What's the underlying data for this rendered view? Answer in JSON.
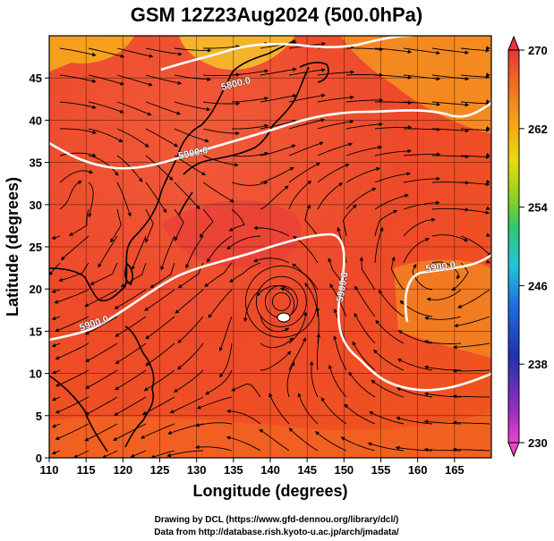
{
  "title": "GSM 12Z23Aug2024 (500.0hPa)",
  "xlabel": "Longitude (degrees)",
  "ylabel": "Latitude  (degrees)",
  "credits": [
    "Drawing by DCL (https://www.gfd-dennou.org/library/dcl/)",
    "Data from http://database.rish.kyoto-u.ac.jp/arch/jmadata/"
  ],
  "map": {
    "lon_range": [
      110,
      170
    ],
    "lat_range": [
      0,
      50
    ],
    "lon_ticks": [
      "110",
      "115",
      "120",
      "125",
      "130",
      "135",
      "140",
      "145",
      "150",
      "155",
      "160",
      "165"
    ],
    "lat_ticks": [
      "0",
      "5",
      "10",
      "15",
      "20",
      "25",
      "30",
      "35",
      "40",
      "45"
    ],
    "grid": true,
    "field": "temperature (shaded)",
    "vectors": "streamlines",
    "contour_labels": [
      "5800.0",
      "5900.0",
      "5900.0",
      "5900.0",
      "5900.0"
    ],
    "typhoon_center": [
      141.5,
      18.5
    ]
  },
  "colorbar": {
    "ticks": [
      "270",
      "262",
      "254",
      "246",
      "238",
      "230"
    ],
    "min": 230,
    "max": 270,
    "colors": {
      "high": "#e8323c",
      "mid_high": "#f08a1e",
      "mid": "#90d020",
      "cyan": "#20c8d8",
      "low": "#2030b0",
      "min": "#e040d0"
    }
  }
}
